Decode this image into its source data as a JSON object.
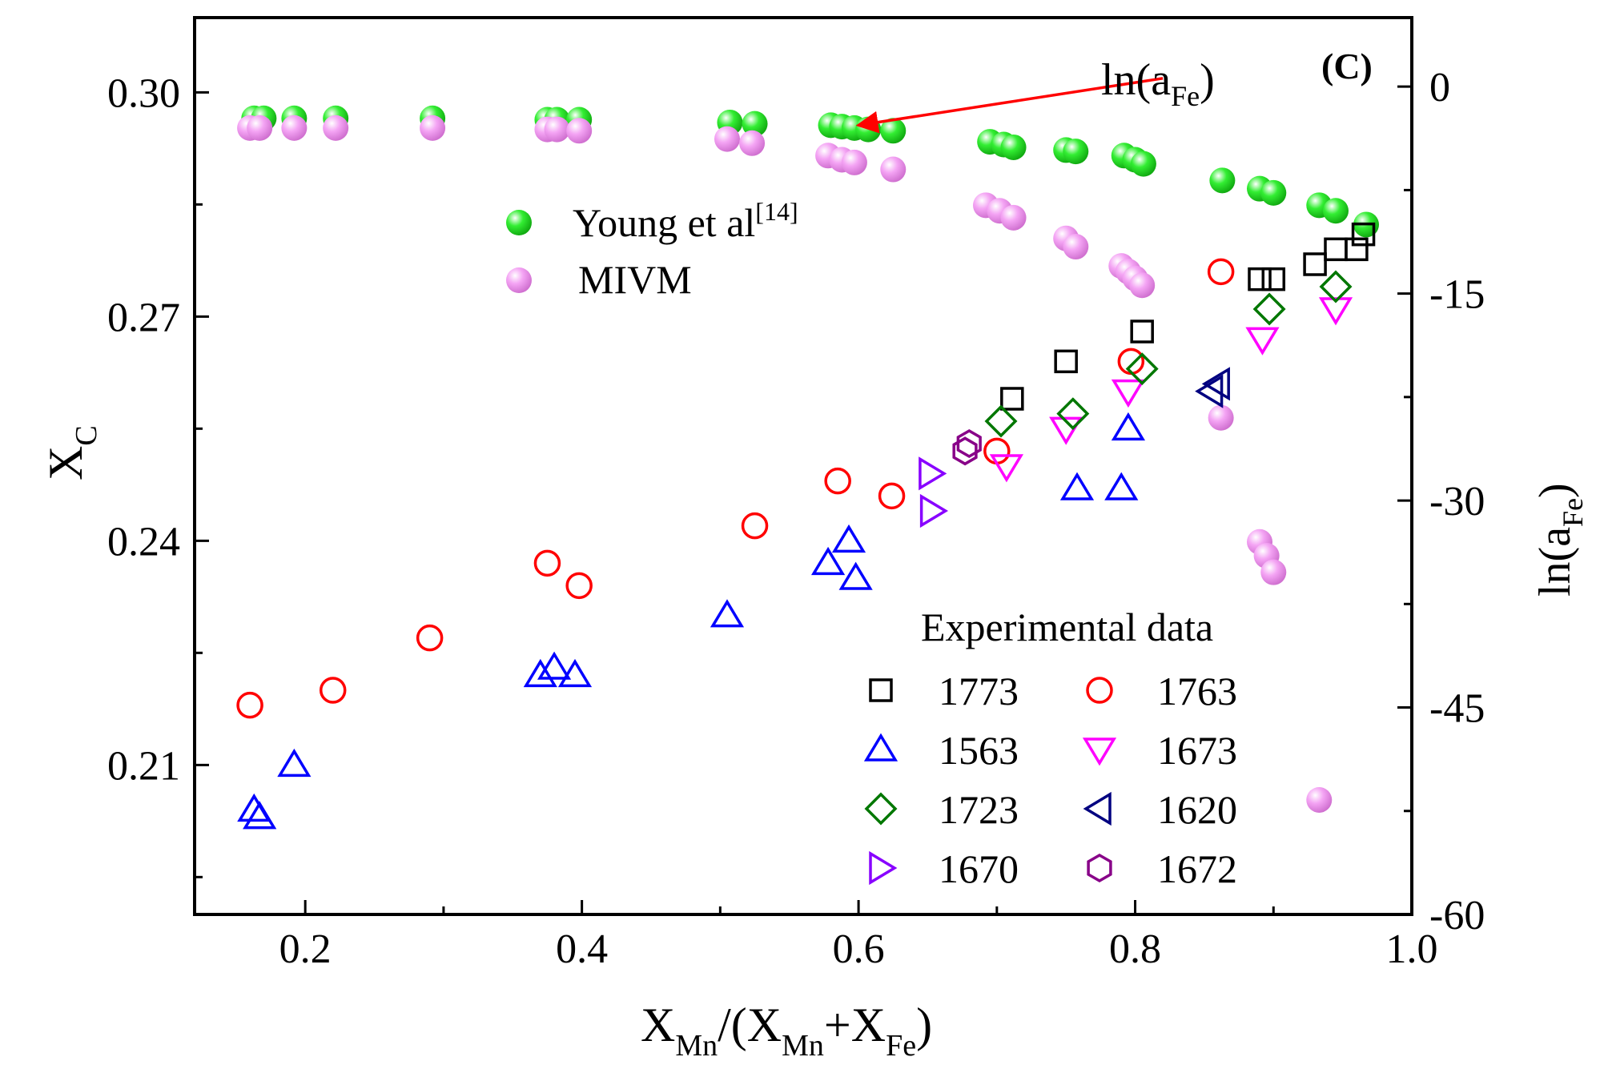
{
  "chart_data": {
    "type": "scatter",
    "panel_label": "(C)",
    "xlabel": {
      "main": "X",
      "sub1": "Mn",
      "mid": "/(X",
      "sub2": "Mn",
      "plus": "+X",
      "sub3": "Fe",
      "close": ")"
    },
    "ylabel": {
      "main": "X",
      "sub": "C"
    },
    "y2label": {
      "main": "ln(a",
      "sub": "Fe",
      "close": ")"
    },
    "xlim": [
      0.12,
      1.0
    ],
    "ylim": [
      0.19,
      0.31
    ],
    "y2lim": [
      -60,
      5
    ],
    "x_ticks": [
      "0.2",
      "0.4",
      "0.6",
      "0.8",
      "1.0"
    ],
    "x_tick_values": [
      0.2,
      0.4,
      0.6,
      0.8,
      1.0
    ],
    "y_ticks": [
      "0.21",
      "0.24",
      "0.27",
      "0.30"
    ],
    "y_tick_values": [
      0.21,
      0.24,
      0.27,
      0.3
    ],
    "y2_ticks": [
      "-60",
      "-45",
      "-30",
      "-15",
      "0"
    ],
    "y2_tick_values": [
      -60,
      -45,
      -30,
      -15,
      0
    ],
    "annotation": {
      "main": "ln(a",
      "sub": "Fe",
      "close": ")",
      "arrow_from": [
        0.82,
        0.6
      ],
      "arrow_to": [
        0.6,
        -2.8
      ]
    },
    "legend_top": [
      {
        "label": "Young et al",
        "sup": "[14]",
        "color": "#22dd22"
      },
      {
        "label": "MIVM",
        "sup": "",
        "color": "#ee88ee"
      }
    ],
    "legend_title": "Experimental data",
    "series": [
      {
        "name": "1773",
        "axis": "left",
        "marker": "square",
        "color": "#000000",
        "x": [
          0.711,
          0.75,
          0.805,
          0.89,
          0.9,
          0.93,
          0.945,
          0.96,
          0.965
        ],
        "y": [
          0.259,
          0.264,
          0.268,
          0.275,
          0.275,
          0.277,
          0.279,
          0.279,
          0.281
        ]
      },
      {
        "name": "1763",
        "axis": "left",
        "marker": "circle",
        "color": "#ff0000",
        "x": [
          0.16,
          0.22,
          0.29,
          0.375,
          0.398,
          0.525,
          0.585,
          0.624,
          0.7,
          0.797,
          0.862
        ],
        "y": [
          0.218,
          0.22,
          0.227,
          0.237,
          0.234,
          0.242,
          0.248,
          0.246,
          0.252,
          0.264,
          0.276
        ]
      },
      {
        "name": "1563",
        "axis": "left",
        "marker": "triangle-up",
        "color": "#0000ff",
        "x": [
          0.163,
          0.167,
          0.192,
          0.37,
          0.38,
          0.395,
          0.505,
          0.578,
          0.593,
          0.598,
          0.758,
          0.79,
          0.795
        ],
        "y": [
          0.204,
          0.203,
          0.21,
          0.222,
          0.223,
          0.222,
          0.23,
          0.237,
          0.24,
          0.235,
          0.247,
          0.247,
          0.255
        ]
      },
      {
        "name": "1673",
        "axis": "left",
        "marker": "triangle-down",
        "color": "#ff00ff",
        "x": [
          0.707,
          0.75,
          0.795,
          0.892,
          0.945
        ],
        "y": [
          0.25,
          0.255,
          0.26,
          0.267,
          0.271
        ]
      },
      {
        "name": "1723",
        "axis": "left",
        "marker": "diamond",
        "color": "#007700",
        "x": [
          0.703,
          0.755,
          0.805,
          0.897,
          0.945
        ],
        "y": [
          0.256,
          0.257,
          0.263,
          0.271,
          0.274
        ]
      },
      {
        "name": "1620",
        "axis": "left",
        "marker": "triangle-left",
        "color": "#000080",
        "x": [
          0.855,
          0.86
        ],
        "y": [
          0.26,
          0.261
        ]
      },
      {
        "name": "1670",
        "axis": "left",
        "marker": "triangle-right",
        "color": "#8800ff",
        "x": [
          0.652,
          0.653
        ],
        "y": [
          0.249,
          0.244
        ]
      },
      {
        "name": "1672",
        "axis": "left",
        "marker": "hexagon",
        "color": "#880088",
        "x": [
          0.677,
          0.68
        ],
        "y": [
          0.252,
          0.253
        ]
      },
      {
        "name": "Young et al",
        "axis": "right",
        "marker": "ball",
        "color": "#22dd22",
        "x": [
          0.163,
          0.17,
          0.192,
          0.222,
          0.292,
          0.375,
          0.382,
          0.398,
          0.507,
          0.525,
          0.58,
          0.588,
          0.597,
          0.607,
          0.625,
          0.695,
          0.705,
          0.712,
          0.75,
          0.757,
          0.792,
          0.8,
          0.806,
          0.863,
          0.89,
          0.9,
          0.933,
          0.945,
          0.967
        ],
        "y": [
          -2.3,
          -2.3,
          -2.3,
          -2.3,
          -2.3,
          -2.4,
          -2.4,
          -2.4,
          -2.6,
          -2.7,
          -2.8,
          -2.9,
          -3.0,
          -3.1,
          -3.2,
          -4.0,
          -4.2,
          -4.4,
          -4.6,
          -4.7,
          -5.0,
          -5.3,
          -5.6,
          -6.8,
          -7.4,
          -7.7,
          -8.6,
          -9.0,
          -10.0
        ]
      },
      {
        "name": "MIVM",
        "axis": "right",
        "marker": "ball",
        "color": "#ee88ee",
        "x": [
          0.16,
          0.167,
          0.192,
          0.222,
          0.292,
          0.375,
          0.382,
          0.398,
          0.505,
          0.523,
          0.578,
          0.588,
          0.597,
          0.625,
          0.692,
          0.702,
          0.712,
          0.75,
          0.757,
          0.79,
          0.795,
          0.8,
          0.805,
          0.862,
          0.89,
          0.895,
          0.9,
          0.933
        ],
        "y": [
          -3.0,
          -3.0,
          -3.0,
          -3.0,
          -3.0,
          -3.1,
          -3.1,
          -3.2,
          -3.8,
          -4.1,
          -5.0,
          -5.3,
          -5.5,
          -6.0,
          -8.6,
          -9.0,
          -9.5,
          -11.0,
          -11.6,
          -13.0,
          -13.4,
          -13.9,
          -14.4,
          -24.0,
          -33.0,
          -34.0,
          -35.2,
          -51.7
        ]
      }
    ]
  }
}
